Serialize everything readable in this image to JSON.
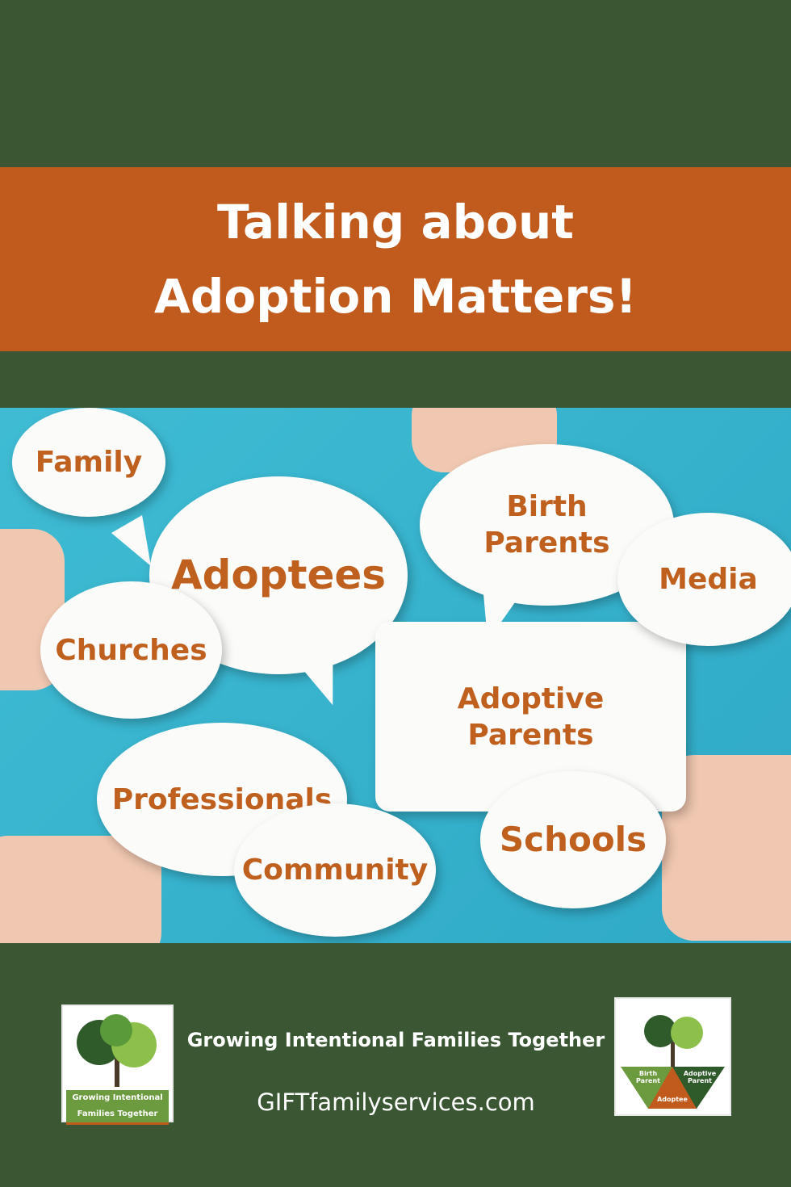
{
  "banner": {
    "line1": "Talking about",
    "line2": "Adoption Matters!"
  },
  "bubbles": [
    "Family",
    "Adoptees",
    "Churches",
    "Professionals",
    "Community",
    "Birth Parents",
    "Media",
    "Adoptive Parents",
    "Schools"
  ],
  "footer": {
    "tagline": "Growing Intentional Families Together",
    "website": "GIFTfamilyservices.com"
  },
  "logo_left": {
    "text_line1": "Growing Intentional",
    "text_line2": "Families Together"
  },
  "logo_right": {
    "left": "Birth Parent",
    "right": "Adoptive Parent",
    "bottom": "Adoptee"
  },
  "colors": {
    "background": "#3a5633",
    "banner": "#c05b1d",
    "photo": "#3bb8d0",
    "bubble_text": "#c0601f"
  }
}
